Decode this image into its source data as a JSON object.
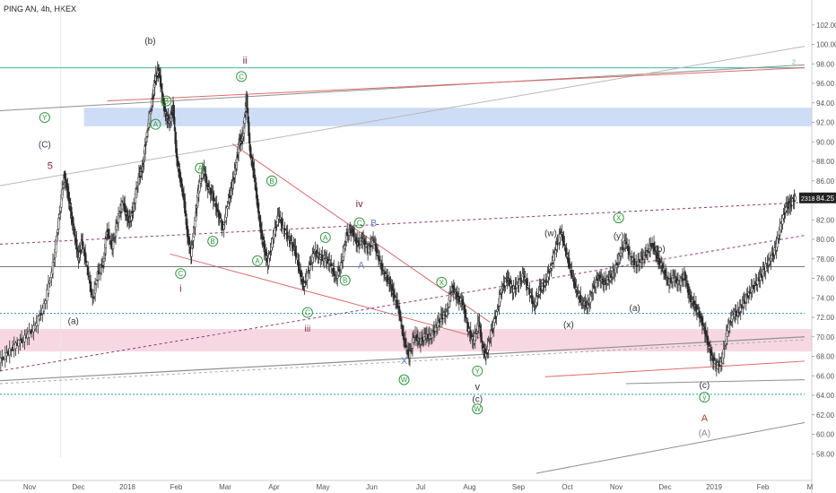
{
  "chart_data": {
    "type": "line",
    "title": "PING AN, 4h, HKEX",
    "symbol_badge": "2318",
    "last_price_label": "84.25",
    "ylim": [
      56,
      104
    ],
    "y_ticks": [
      "102.00",
      "100.00",
      "98.00",
      "96.00",
      "94.00",
      "92.00",
      "90.00",
      "88.00",
      "86.00",
      "84.00",
      "82.00",
      "80.00",
      "78.00",
      "76.00",
      "74.00",
      "72.00",
      "70.00",
      "68.00",
      "66.00",
      "64.00",
      "62.00",
      "60.00",
      "58.00"
    ],
    "x_ticks": [
      "Nov",
      "Dec",
      "2018",
      "Feb",
      "Mar",
      "Apr",
      "May",
      "Jun",
      "Jul",
      "Aug",
      "Sep",
      "Oct",
      "Nov",
      "Dec",
      "2019",
      "Feb",
      "M"
    ],
    "series": [
      {
        "values": [
          [
            0,
            67.5
          ],
          [
            0.5,
            68.4
          ],
          [
            1,
            69.3
          ],
          [
            1.5,
            70
          ],
          [
            2,
            71.1
          ],
          [
            2.5,
            73.2
          ],
          [
            3,
            77.4
          ],
          [
            3.3,
            82
          ],
          [
            3.6,
            86.6
          ],
          [
            3.8,
            85
          ],
          [
            4,
            82.5
          ],
          [
            4.2,
            80.5
          ],
          [
            4.4,
            78
          ],
          [
            4.6,
            79.8
          ],
          [
            4.9,
            77
          ],
          [
            5.2,
            73.8
          ],
          [
            5.5,
            76.5
          ],
          [
            5.8,
            77.6
          ],
          [
            6,
            81
          ],
          [
            6.3,
            79.2
          ],
          [
            6.6,
            82
          ],
          [
            6.9,
            84
          ],
          [
            7.1,
            82.2
          ],
          [
            7.3,
            82
          ],
          [
            7.5,
            83.4
          ],
          [
            7.8,
            86.5
          ],
          [
            8,
            87.3
          ],
          [
            8.2,
            90.5
          ],
          [
            8.5,
            93.8
          ],
          [
            8.7,
            96.5
          ],
          [
            8.9,
            97.5
          ],
          [
            9.1,
            94.5
          ],
          [
            9.3,
            92.5
          ],
          [
            9.5,
            92.1
          ],
          [
            9.7,
            93.5
          ],
          [
            9.9,
            88.2
          ],
          [
            10.1,
            86.2
          ],
          [
            10.3,
            84.2
          ],
          [
            10.5,
            80.5
          ],
          [
            10.7,
            78.5
          ],
          [
            10.9,
            81.5
          ],
          [
            11.1,
            84.8
          ],
          [
            11.4,
            87.3
          ],
          [
            11.6,
            85.5
          ],
          [
            11.9,
            84.5
          ],
          [
            12.2,
            82.8
          ],
          [
            12.5,
            81
          ],
          [
            12.8,
            84
          ],
          [
            13,
            85.5
          ],
          [
            13.2,
            87.5
          ],
          [
            13.4,
            90
          ],
          [
            13.6,
            90.5
          ],
          [
            13.8,
            94.6
          ],
          [
            14,
            89
          ],
          [
            14.2,
            87
          ],
          [
            14.4,
            84
          ],
          [
            14.6,
            81
          ],
          [
            14.8,
            79
          ],
          [
            15,
            77.6
          ],
          [
            15.3,
            80.3
          ],
          [
            15.6,
            82.5
          ],
          [
            15.9,
            81
          ],
          [
            16.2,
            80
          ],
          [
            16.5,
            79
          ],
          [
            16.8,
            76.6
          ],
          [
            17,
            75.2
          ],
          [
            17.3,
            77
          ],
          [
            17.6,
            78.8
          ],
          [
            17.9,
            78.2
          ],
          [
            18.2,
            78
          ],
          [
            18.5,
            77.5
          ],
          [
            18.8,
            76
          ],
          [
            19.1,
            77.4
          ],
          [
            19.4,
            80.5
          ],
          [
            19.7,
            81
          ],
          [
            20,
            79.5
          ],
          [
            20.3,
            80
          ],
          [
            20.6,
            78.9
          ],
          [
            20.9,
            80
          ],
          [
            21.2,
            78
          ],
          [
            21.5,
            76.5
          ],
          [
            21.8,
            75.6
          ],
          [
            22,
            74.5
          ],
          [
            22.3,
            73
          ],
          [
            22.6,
            69.8
          ],
          [
            22.9,
            68
          ],
          [
            23.2,
            70.2
          ],
          [
            23.5,
            69.5
          ],
          [
            23.8,
            70.1
          ],
          [
            24.1,
            70
          ],
          [
            24.4,
            71
          ],
          [
            24.7,
            72
          ],
          [
            25,
            72.4
          ],
          [
            25.3,
            75.2
          ],
          [
            25.6,
            74
          ],
          [
            25.9,
            73.5
          ],
          [
            26.2,
            70.8
          ],
          [
            26.5,
            69.5
          ],
          [
            26.8,
            71.5
          ],
          [
            27,
            68.9
          ],
          [
            27.2,
            68.1
          ],
          [
            27.5,
            70.5
          ],
          [
            27.8,
            72.5
          ],
          [
            28.1,
            75
          ],
          [
            28.4,
            76
          ],
          [
            28.7,
            74.8
          ],
          [
            29,
            75.5
          ],
          [
            29.3,
            76.3
          ],
          [
            29.6,
            74.8
          ],
          [
            29.9,
            73.1
          ],
          [
            30.2,
            74.9
          ],
          [
            30.5,
            75.5
          ],
          [
            30.8,
            77
          ],
          [
            31.1,
            79.1
          ],
          [
            31.4,
            80.8
          ],
          [
            31.7,
            78.5
          ],
          [
            32,
            76.4
          ],
          [
            32.3,
            74.5
          ],
          [
            32.6,
            73.5
          ],
          [
            32.9,
            73.2
          ],
          [
            33.2,
            75
          ],
          [
            33.5,
            76.2
          ],
          [
            33.8,
            75.5
          ],
          [
            34.1,
            76
          ],
          [
            34.4,
            76.8
          ],
          [
            34.7,
            78.5
          ],
          [
            35,
            79.8
          ],
          [
            35.3,
            78.1
          ],
          [
            35.6,
            77.4
          ],
          [
            35.9,
            78
          ],
          [
            36.2,
            78.7
          ],
          [
            36.5,
            79.6
          ],
          [
            36.8,
            78
          ],
          [
            37.1,
            77
          ],
          [
            37.4,
            75.6
          ],
          [
            37.7,
            76.1
          ],
          [
            38,
            75.4
          ],
          [
            38.3,
            76.4
          ],
          [
            38.6,
            74
          ],
          [
            38.9,
            73.1
          ],
          [
            39.2,
            72
          ],
          [
            39.5,
            70.2
          ],
          [
            39.8,
            68
          ],
          [
            40.1,
            67
          ],
          [
            40.4,
            67.5
          ],
          [
            40.7,
            70.6
          ],
          [
            41,
            72.3
          ],
          [
            41.3,
            72.5
          ],
          [
            41.6,
            73.5
          ],
          [
            41.9,
            74.5
          ],
          [
            42.2,
            75.3
          ],
          [
            42.5,
            76
          ],
          [
            42.8,
            77
          ],
          [
            43.1,
            78
          ],
          [
            43.4,
            79
          ],
          [
            43.7,
            81.5
          ],
          [
            44,
            83.5
          ],
          [
            44.2,
            83.5
          ],
          [
            44.5,
            84.25
          ]
        ]
      }
    ],
    "wave_labels": [
      {
        "text": "Y",
        "circled": true,
        "color": "#2e9a3c",
        "x": 2.5,
        "y": 92.5
      },
      {
        "text": "(C)",
        "circled": false,
        "color": "#4a3060",
        "x": 2.5,
        "y": 89.8
      },
      {
        "text": "5",
        "circled": false,
        "color": "#8b1e3f",
        "x": 2.8,
        "y": 87.6
      },
      {
        "text": "(a)",
        "circled": false,
        "color": "#333",
        "x": 4.1,
        "y": 71.7
      },
      {
        "text": "(b)",
        "circled": false,
        "color": "#333",
        "x": 8.4,
        "y": 100.4
      },
      {
        "text": "A",
        "circled": true,
        "color": "#2e9a3c",
        "x": 8.7,
        "y": 91.8
      },
      {
        "text": "B",
        "circled": true,
        "color": "#2e9a3c",
        "x": 9.3,
        "y": 94.2
      },
      {
        "text": "C",
        "circled": true,
        "color": "#2e9a3c",
        "x": 10.1,
        "y": 76.5
      },
      {
        "text": "i",
        "circled": false,
        "color": "#8b1e3f",
        "x": 10.1,
        "y": 75
      },
      {
        "text": "A",
        "circled": true,
        "color": "#2e9a3c",
        "x": 11.2,
        "y": 87.3
      },
      {
        "text": "B",
        "circled": true,
        "color": "#2e9a3c",
        "x": 11.9,
        "y": 79.8
      },
      {
        "text": "ii",
        "circled": false,
        "color": "#8b1e3f",
        "x": 13.7,
        "y": 98.4
      },
      {
        "text": "C",
        "circled": true,
        "color": "#2e9a3c",
        "x": 13.5,
        "y": 96.7
      },
      {
        "text": "B",
        "circled": true,
        "color": "#2e9a3c",
        "x": 15.2,
        "y": 86
      },
      {
        "text": "A",
        "circled": true,
        "color": "#2e9a3c",
        "x": 14.4,
        "y": 77.8
      },
      {
        "text": "A",
        "circled": true,
        "color": "#2e9a3c",
        "x": 18.2,
        "y": 80.2
      },
      {
        "text": "B",
        "circled": true,
        "color": "#2e9a3c",
        "x": 19.3,
        "y": 75.8
      },
      {
        "text": "C",
        "circled": true,
        "color": "#2e9a3c",
        "x": 17.2,
        "y": 72.5
      },
      {
        "text": "iii",
        "circled": false,
        "color": "#8b1e3f",
        "x": 17.2,
        "y": 70.9
      },
      {
        "text": "iv",
        "circled": false,
        "color": "#8b1e3f",
        "x": 20.1,
        "y": 83.7
      },
      {
        "text": "C",
        "circled": true,
        "color": "#2e9a3c",
        "x": 20.1,
        "y": 81.7
      },
      {
        "text": "B",
        "circled": false,
        "color": "#6a7fd0",
        "x": 20.9,
        "y": 81.7
      },
      {
        "text": "A",
        "circled": false,
        "color": "#6a7fd0",
        "x": 20.2,
        "y": 77.4
      },
      {
        "text": "X",
        "circled": false,
        "color": "#6a7fd0",
        "x": 22.6,
        "y": 67.6
      },
      {
        "text": "W",
        "circled": true,
        "color": "#2e9a3c",
        "x": 22.6,
        "y": 65.6
      },
      {
        "text": "X",
        "circled": true,
        "color": "#2e9a3c",
        "x": 24.7,
        "y": 75.6
      },
      {
        "text": "Y",
        "circled": true,
        "color": "#2e9a3c",
        "x": 26.7,
        "y": 66.5
      },
      {
        "text": "v",
        "circled": false,
        "color": "#333",
        "x": 26.7,
        "y": 64.9
      },
      {
        "text": "(c)",
        "circled": false,
        "color": "#333",
        "x": 26.7,
        "y": 63.7
      },
      {
        "text": "W",
        "circled": true,
        "color": "#2e9a3c",
        "x": 26.7,
        "y": 62.6
      },
      {
        "text": "(w)",
        "circled": false,
        "color": "#333",
        "x": 30.8,
        "y": 80.7
      },
      {
        "text": "(x)",
        "circled": false,
        "color": "#333",
        "x": 31.8,
        "y": 71.3
      },
      {
        "text": "(y)",
        "circled": false,
        "color": "#333",
        "x": 34.6,
        "y": 80.4
      },
      {
        "text": "X",
        "circled": true,
        "color": "#2e9a3c",
        "x": 34.6,
        "y": 82.2
      },
      {
        "text": "(a)",
        "circled": false,
        "color": "#333",
        "x": 35.5,
        "y": 73
      },
      {
        "text": "(b)",
        "circled": false,
        "color": "#333",
        "x": 36.9,
        "y": 79.1
      },
      {
        "text": "(c)",
        "circled": false,
        "color": "#333",
        "x": 39.4,
        "y": 65.1
      },
      {
        "text": "y",
        "circled": true,
        "color": "#2e9a3c",
        "x": 39.4,
        "y": 63.8
      },
      {
        "text": "A",
        "circled": false,
        "color": "#c0392b",
        "x": 39.4,
        "y": 61.7
      },
      {
        "text": "(A)",
        "circled": false,
        "color": "#888888",
        "x": 39.4,
        "y": 60.2
      }
    ],
    "line_label": "2",
    "colors": {
      "up": "#2b2b2b",
      "down": "#2b2b2b",
      "blue_zone": "#c9d9f5",
      "pink_zone": "#f6d4df",
      "teal_line": "#3fb8a2",
      "red_line": "#e06a6a",
      "gray_line": "#8f8f8f",
      "purple_dash": "#8b3a78",
      "blue_dot": "#1f9fbf",
      "badge_bg": "#222222",
      "price_tag": "#222222"
    }
  }
}
